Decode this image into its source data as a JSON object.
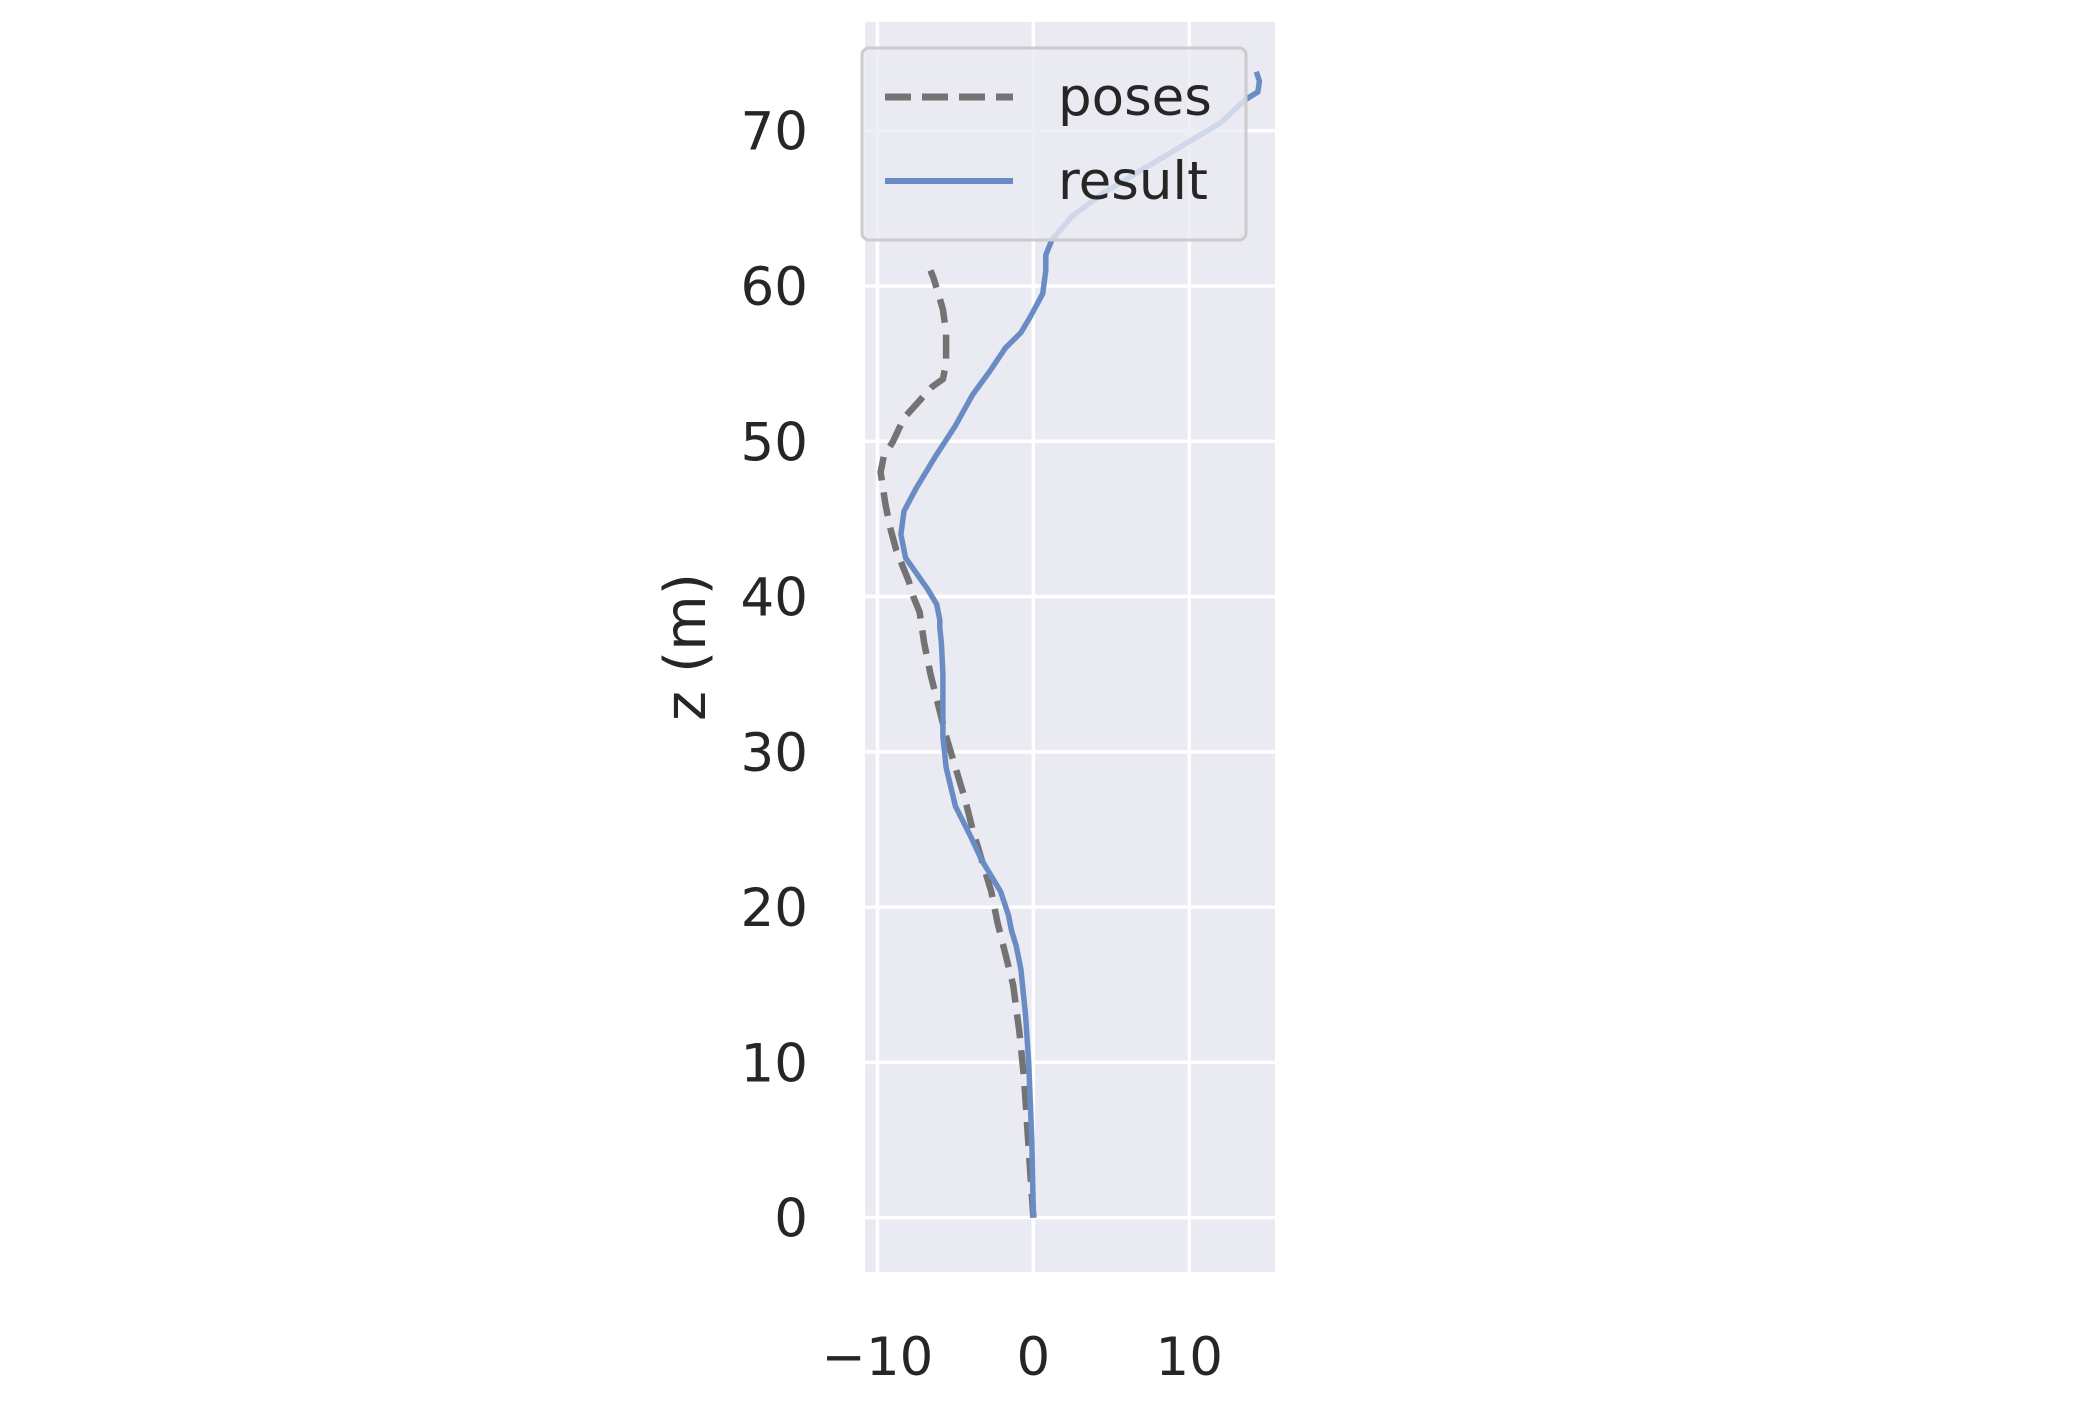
{
  "chart_data": {
    "type": "line",
    "title": "",
    "xlabel": "",
    "ylabel": "z (m)",
    "xlim": [
      -10.8,
      15.5
    ],
    "ylim": [
      -3.5,
      77
    ],
    "xticks": [
      -10,
      0,
      10
    ],
    "xtick_labels": [
      "−10",
      "0",
      "10"
    ],
    "yticks": [
      0,
      10,
      20,
      30,
      40,
      50,
      60,
      70
    ],
    "ytick_labels": [
      "0",
      "10",
      "20",
      "30",
      "40",
      "50",
      "60",
      "70"
    ],
    "grid": true,
    "legend_position": "upper right",
    "colors": {
      "poses": "#737373",
      "result": "#6a8cc4",
      "plot_bg": "#eaeaf2",
      "grid": "#ffffff"
    },
    "series": [
      {
        "name": "poses",
        "style": "dashed",
        "x": [
          0.0,
          -0.2,
          -0.4,
          -0.6,
          -0.9,
          -1.3,
          -1.8,
          -2.3,
          -2.7,
          -3.3,
          -3.9,
          -4.4,
          -5.0,
          -5.6,
          -6.1,
          -6.6,
          -7.0,
          -7.3,
          -7.7,
          -8.0,
          -8.4,
          -8.8,
          -9.2,
          -9.5,
          -9.8,
          -9.6,
          -9.0,
          -8.3,
          -7.4,
          -6.5,
          -5.8,
          -5.6,
          -5.6,
          -5.8,
          -6.1,
          -6.4,
          -6.6
        ],
        "y": [
          0,
          3,
          6,
          9,
          12,
          15,
          17,
          19,
          21,
          23,
          25,
          27,
          29,
          31,
          33,
          35,
          37,
          39,
          40,
          41,
          42,
          43,
          44.5,
          46,
          48,
          49,
          50,
          51.5,
          52.5,
          53.5,
          54,
          55,
          57,
          58.5,
          59.5,
          60.5,
          61
        ]
      },
      {
        "name": "result",
        "style": "solid",
        "x": [
          0.0,
          -0.1,
          -0.3,
          -0.5,
          -0.8,
          -1.1,
          -1.4,
          -1.6,
          -2.1,
          -2.7,
          -3.3,
          -4.0,
          -5.0,
          -5.6,
          -5.8,
          -5.8,
          -5.8,
          -5.9,
          -6.0,
          -6.0,
          -6.2,
          -6.8,
          -7.5,
          -8.2,
          -8.5,
          -8.3,
          -7.5,
          -6.3,
          -5.0,
          -3.9,
          -2.8,
          -1.8,
          -0.8,
          -0.2,
          0.6,
          0.8,
          0.8,
          1.2,
          2.5,
          4.5,
          7.0,
          9.5,
          12.0,
          13.6,
          14.4,
          14.5,
          14.3
        ],
        "y": [
          0,
          5,
          10,
          13,
          16,
          17.5,
          18.5,
          19.5,
          21,
          22,
          23,
          24.5,
          26.5,
          29,
          31,
          33,
          35,
          37,
          38,
          38.5,
          39.5,
          40.5,
          41.5,
          42.5,
          44,
          45.5,
          47,
          49,
          51,
          53,
          54.5,
          56,
          57,
          58,
          59.5,
          61,
          62,
          63,
          64.5,
          66,
          67.5,
          69,
          70.5,
          72,
          72.5,
          73.2,
          73.8
        ]
      }
    ]
  }
}
